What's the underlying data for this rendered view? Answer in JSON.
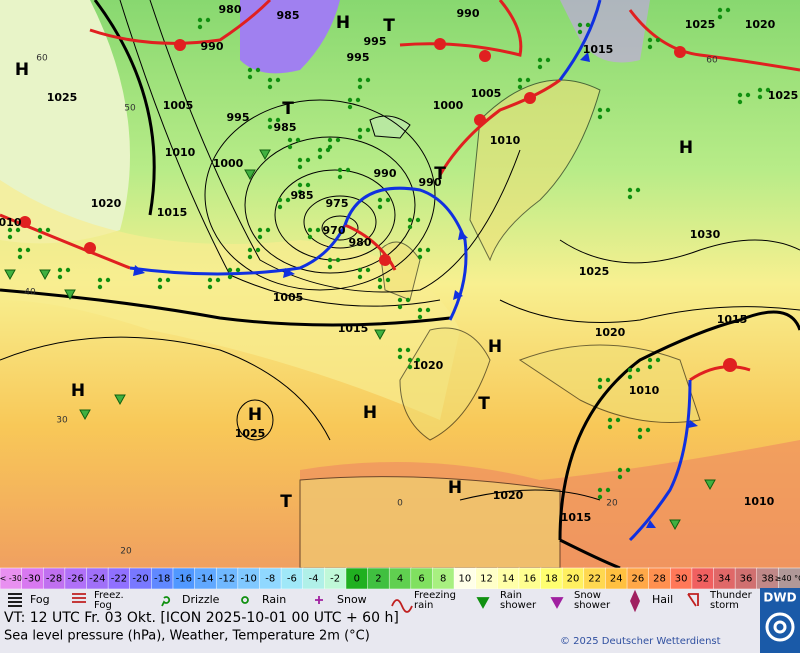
{
  "map": {
    "pressure_labels": [
      "980",
      "985",
      "990",
      "1025",
      "1020",
      "990",
      "995",
      "995",
      "1015",
      "1025",
      "1005",
      "995",
      "985",
      "1000",
      "1005",
      "1025",
      "1010",
      "1000",
      "990",
      "1010",
      "990",
      "1020",
      "1015",
      "985",
      "975",
      "970",
      "980",
      "1030",
      "010",
      "1025",
      "1005",
      "1015",
      "1020",
      "1015",
      "1020",
      "1010",
      "1025",
      "1020",
      "1010",
      "1015"
    ],
    "pressure_centers": [
      "H",
      "H",
      "T",
      "T",
      "T",
      "H",
      "H",
      "H",
      "H",
      "H",
      "T",
      "H",
      "T"
    ],
    "graticule_labels": [
      "60",
      "50",
      "40",
      "30",
      "20",
      "20",
      "0",
      "60"
    ]
  },
  "temperature_scale": {
    "labels": [
      "< -30",
      -30,
      -28,
      -26,
      -24,
      -22,
      -20,
      -18,
      -16,
      -14,
      -12,
      -10,
      -8,
      -6,
      -4,
      -2,
      0,
      2,
      4,
      6,
      8,
      10,
      12,
      14,
      16,
      18,
      20,
      22,
      24,
      26,
      28,
      30,
      32,
      34,
      36,
      38,
      "≥40 °C"
    ],
    "colors": [
      "#e890f0",
      "#d878f0",
      "#c070f0",
      "#b070f8",
      "#a070f8",
      "#9070ff",
      "#7878ff",
      "#6088ff",
      "#5098ff",
      "#60a8ff",
      "#70b8ff",
      "#80c8ff",
      "#90d8ff",
      "#a0e8f8",
      "#b0f0e8",
      "#c0f8d8",
      "#20b020",
      "#40c040",
      "#60d050",
      "#80e060",
      "#a8f080",
      "#ffffe8",
      "#ffffc8",
      "#ffffa8",
      "#ffff90",
      "#ffff70",
      "#fff060",
      "#ffd850",
      "#ffc040",
      "#ffa848",
      "#ff9050",
      "#ff7858",
      "#f06060",
      "#e06868",
      "#d07070",
      "#c08888",
      "#b09898"
    ]
  },
  "weather_legend": [
    "Fog",
    "Freez. Fog",
    "Drizzle",
    "Rain",
    "Snow",
    "Freezing rain",
    "Rain shower",
    "Snow shower",
    "Hail",
    "Thunder storm"
  ],
  "footer": {
    "valid_time": "VT: 12 UTC Fr.  03 Okt. [ICON 2025-10-01  00 UTC + 60 h]",
    "description": "Sea level pressure (hPa), Weather, Temperature 2m (°C)",
    "copyright": "© 2025 Deutscher Wetterdienst",
    "logo": "DWD"
  }
}
